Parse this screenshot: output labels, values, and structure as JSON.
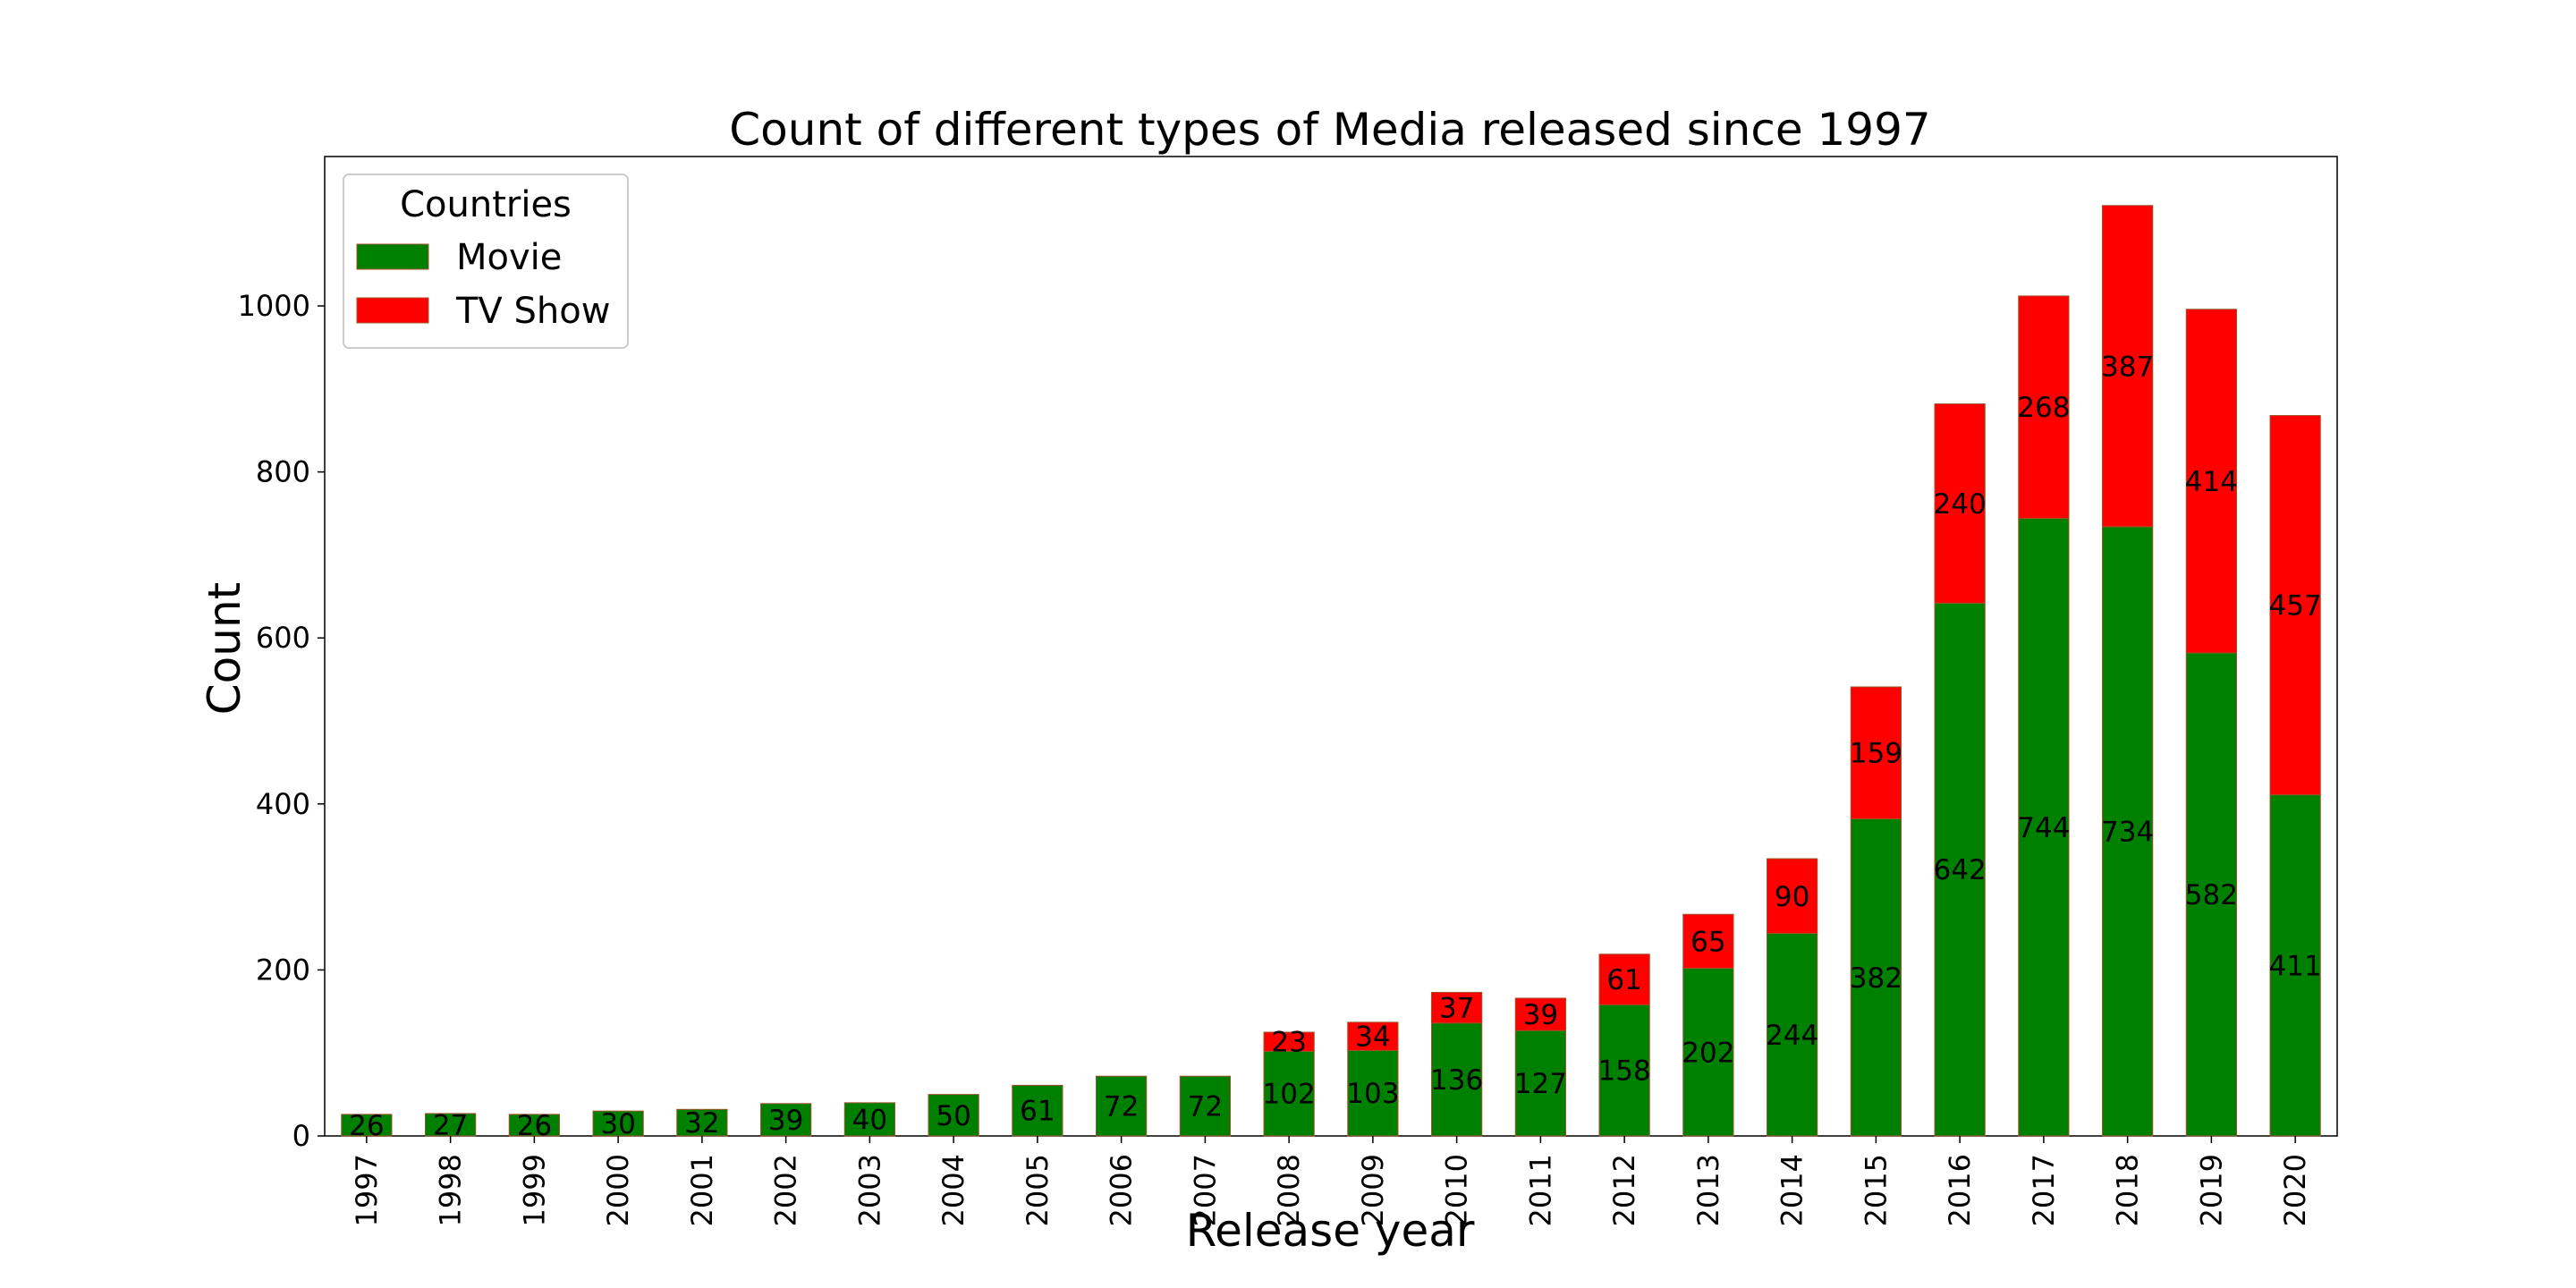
{
  "chart_data": {
    "type": "bar",
    "stacked": true,
    "title": "Count of different types of Media released since 1997",
    "xlabel": "Release year",
    "ylabel": "Count",
    "ylim": [
      0,
      1180
    ],
    "yticks": [
      0,
      200,
      400,
      600,
      800,
      1000
    ],
    "categories": [
      "1997",
      "1998",
      "1999",
      "2000",
      "2001",
      "2002",
      "2003",
      "2004",
      "2005",
      "2006",
      "2007",
      "2008",
      "2009",
      "2010",
      "2011",
      "2012",
      "2013",
      "2014",
      "2015",
      "2016",
      "2017",
      "2018",
      "2019",
      "2020"
    ],
    "legend_title": "Countries",
    "legend_position": "top-left",
    "series": [
      {
        "name": "Movie",
        "color": "#008000",
        "values": [
          26,
          27,
          26,
          30,
          32,
          39,
          40,
          50,
          61,
          72,
          72,
          102,
          103,
          136,
          127,
          158,
          202,
          244,
          382,
          642,
          744,
          734,
          582,
          411
        ]
      },
      {
        "name": "TV Show",
        "color": "#ff0000",
        "values": [
          0,
          0,
          0,
          0,
          0,
          0,
          0,
          0,
          0,
          0,
          0,
          23,
          34,
          37,
          39,
          61,
          65,
          90,
          159,
          240,
          268,
          387,
          414,
          457
        ]
      }
    ]
  }
}
